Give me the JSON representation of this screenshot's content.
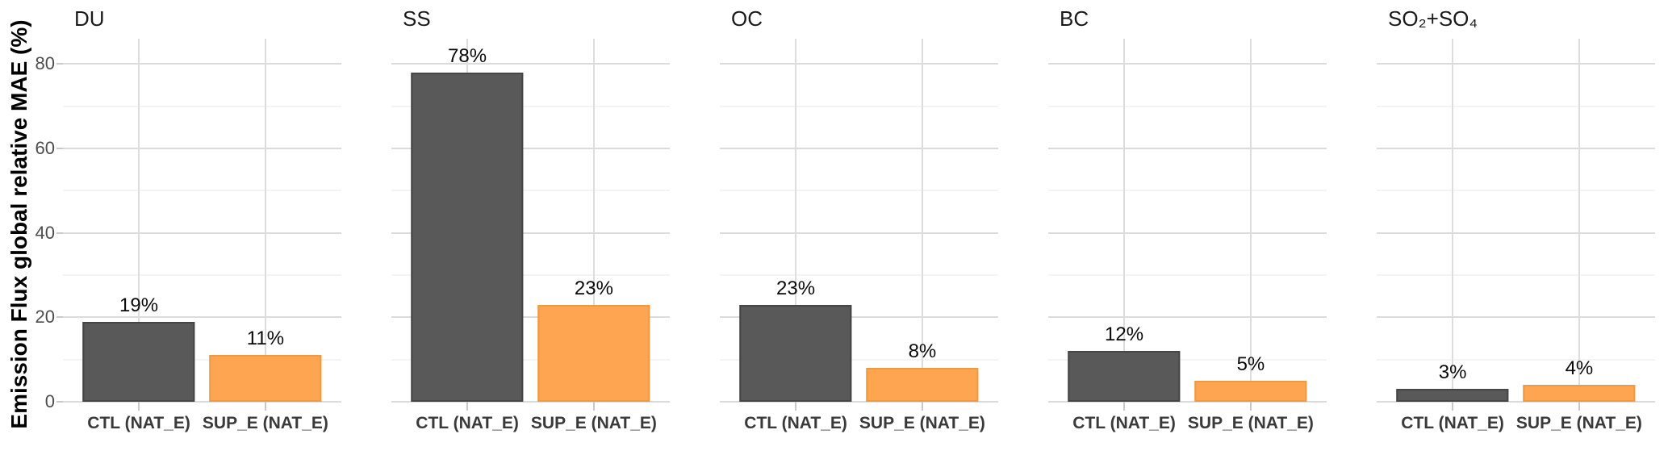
{
  "chart_data": {
    "type": "bar",
    "ylabel": "Emission Flux global relative MAE (%)",
    "categories": [
      "CTL (NAT_E)",
      "SUP_E (NAT_E)"
    ],
    "yticks": [
      0,
      20,
      40,
      60,
      80
    ],
    "ylim": [
      0,
      86
    ],
    "grid": "horizontal major+minor light gray, vertical lines at category centers, no panel border",
    "legend": "none",
    "value_label_suffix": "%",
    "facets": [
      {
        "title": "DU",
        "values": [
          19,
          11
        ],
        "labels": [
          "19%",
          "11%"
        ]
      },
      {
        "title": "SS",
        "values": [
          78,
          23
        ],
        "labels": [
          "78%",
          "23%"
        ]
      },
      {
        "title": "OC",
        "values": [
          23,
          8
        ],
        "labels": [
          "23%",
          "8%"
        ]
      },
      {
        "title": "BC",
        "values": [
          12,
          5
        ],
        "labels": [
          "12%",
          "5%"
        ]
      },
      {
        "title": "SO₂+SO₄",
        "values": [
          3,
          4
        ],
        "labels": [
          "3%",
          "4%"
        ]
      }
    ],
    "colors": {
      "ctl_fill": "#595959",
      "ctl_border": "#454545",
      "sup_fill": "#FDA551",
      "sup_border": "#EE9A43",
      "grid_major": "#dbdbdb",
      "grid_minor": "#e9e9e9",
      "tick": "#c9c9c9",
      "y_tick_text": "#4d4d4d"
    }
  }
}
